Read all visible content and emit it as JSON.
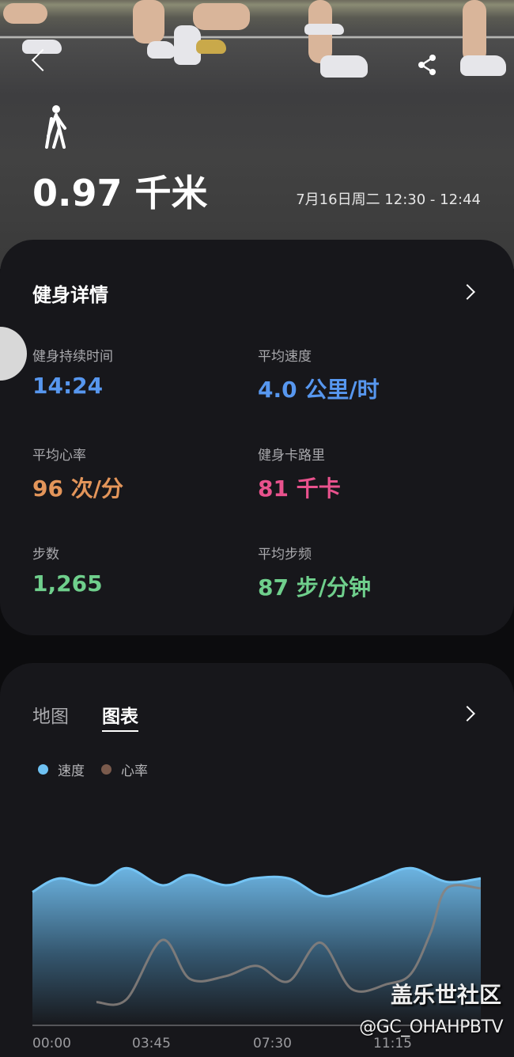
{
  "header": {
    "distance": "0.97 千米",
    "date_range": "7月16日周二 12:30 - 12:44",
    "activity_icon": "walking-icon",
    "back_icon": "back-chevron-icon",
    "share_icon": "share-icon"
  },
  "details": {
    "title": "健身详情",
    "stats": [
      {
        "label": "健身持续时间",
        "value": "14:24",
        "color": "#5797ef"
      },
      {
        "label": "平均速度",
        "value": "4.0 公里/时",
        "color": "#5797ef"
      },
      {
        "label": "平均心率",
        "value": "96 次/分",
        "color": "#e3955a"
      },
      {
        "label": "健身卡路里",
        "value": "81 千卡",
        "color": "#e9528d"
      },
      {
        "label": "步数",
        "value": "1,265",
        "color": "#6fcf8c"
      },
      {
        "label": "平均步频",
        "value": "87 步/分钟",
        "color": "#6fcf8c"
      }
    ]
  },
  "chart_card": {
    "tabs": [
      {
        "label": "地图",
        "active": false
      },
      {
        "label": "图表",
        "active": true
      }
    ]
  },
  "chart_data": {
    "type": "area",
    "legend": [
      {
        "name": "速度",
        "color": "#6ec1f2"
      },
      {
        "name": "心率",
        "color": "#7a5a4c"
      }
    ],
    "x_ticks": [
      "00:00",
      "03:45",
      "07:30",
      "11:15"
    ],
    "series": [
      {
        "name": "速度",
        "type": "area",
        "unit": "公里/时",
        "x": [
          0,
          0.84,
          2.01,
          2.95,
          4.07,
          4.94,
          6.06,
          6.93,
          8.04,
          9.04,
          9.78,
          10.9,
          11.89,
          13.01,
          14.08
        ],
        "values": [
          3.9,
          4.3,
          4.1,
          4.6,
          4.1,
          4.4,
          4.1,
          4.3,
          4.3,
          3.8,
          3.9,
          4.3,
          4.6,
          4.2,
          4.3
        ]
      },
      {
        "name": "心率",
        "type": "line",
        "unit": "次/分",
        "x": [
          2.01,
          2.95,
          4.07,
          4.94,
          6.06,
          7.05,
          8.04,
          9.04,
          10.03,
          11.15,
          11.89,
          12.51,
          13.01,
          14.08
        ],
        "values": [
          79,
          80,
          103,
          88,
          89,
          93,
          87,
          102,
          84,
          86,
          90,
          106,
          123,
          123
        ]
      }
    ]
  },
  "watermark": {
    "line1": "盖乐世社区",
    "line2": "@GC_OHAHPBTV"
  }
}
